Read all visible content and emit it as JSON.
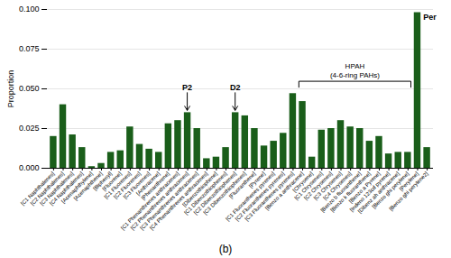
{
  "chart_data": {
    "type": "bar",
    "ylabel": "Proportion",
    "caption": "(b)",
    "categories": [
      "[C1 Naphthalenes]",
      "[C2 Naphthalenes]",
      "[C3 Naphthalenes]",
      "[C4 Naphthalenes]",
      "[Acenaphthylene]",
      "[Acenaphthene]",
      "[Biphenyl]",
      "[Fluorene]",
      "[C1 Fluorenes]",
      "[C2 Fluorenes]",
      "[C3 Fluorenes]",
      "[Anthracene]",
      "[Phenanthrene]",
      "[C1 Phenanthrenes anthracenes]",
      "[C2 Phenanthrenes anthracenes]",
      "[C3 Phenanthrenes anthracenes]",
      "[C4 Phenanthrenes anthracenes]",
      "[Dibenzothiophene]",
      "[C1 Dibenzothiophenes]",
      "[C2 Dibenzothiophenes]",
      "[C3 Dibenzothiophenes]",
      "[Fluoranthene]",
      "[Pyrene]",
      "[C1 Fluoranthenes pyrenes]",
      "[C2 Fluoranthenes pyrenes]",
      "[C3 Fluoranthenes pyrenes]",
      "[Benzo a anthracene]",
      "[Chrysene]",
      "[C1 Chrysenes]",
      "[C2 Chrysenes]",
      "[C3 Chrysenes]",
      "[C4 Chrysenes]",
      "[Benzo b fluoranthene]",
      "[Benzo k fluoranthene]",
      "[Benzo a Pyrene]",
      "[Indeno 123cd pyrene]",
      "[Dibenz ah anthracene]",
      "[Benzo ghi perylene]",
      "[Perylene]",
      "[Benzo ghi perylene2]"
    ],
    "values": [
      0.02,
      0.04,
      0.021,
      0.013,
      0.001,
      0.003,
      0.01,
      0.011,
      0.026,
      0.015,
      0.012,
      0.01,
      0.028,
      0.03,
      0.035,
      0.025,
      0.006,
      0.007,
      0.013,
      0.035,
      0.033,
      0.025,
      0.014,
      0.017,
      0.022,
      0.047,
      0.042,
      0.007,
      0.024,
      0.025,
      0.03,
      0.026,
      0.025,
      0.017,
      0.02,
      0.009,
      0.01,
      0.01,
      0.098,
      0.013
    ],
    "color": "#1a5e1a",
    "ylim": [
      0.0,
      0.1
    ],
    "yticks": [
      {
        "value": 0.0,
        "label": "0.000"
      },
      {
        "value": 0.025,
        "label": "0.025"
      },
      {
        "value": 0.05,
        "label": "0.050"
      },
      {
        "value": 0.075,
        "label": "0.075"
      },
      {
        "value": 0.1,
        "label": "0.100"
      }
    ],
    "grid": true,
    "annotations": [
      {
        "text": "P2",
        "kind": "arrow",
        "category": "[C2 Phenanthrenes anthracenes]"
      },
      {
        "text": "D2",
        "kind": "arrow",
        "category": "[C2 Dibenzothiophenes]"
      },
      {
        "text": "Per",
        "kind": "label",
        "category": "[Perylene]"
      },
      {
        "text": "HPAH\n(4-6-ring PAHs)",
        "kind": "bracket",
        "from": "[Benzo a anthracene]",
        "to": "[Benzo ghi perylene]"
      }
    ]
  }
}
